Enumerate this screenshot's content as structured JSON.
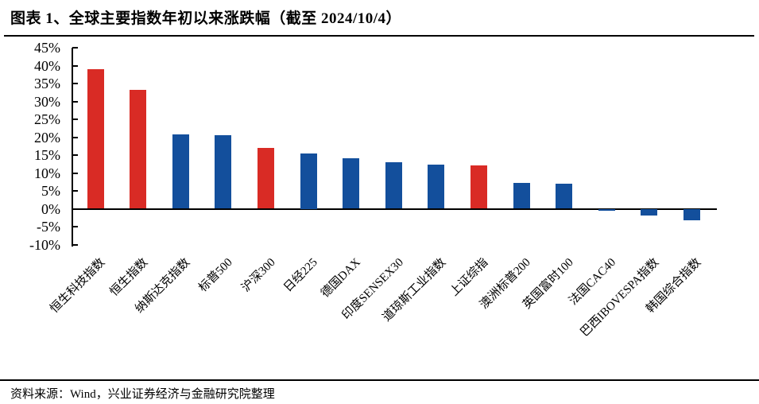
{
  "header": {
    "title": "图表 1、全球主要指数年初以来涨跌幅（截至 2024/10/4）"
  },
  "footer": {
    "source": "资料来源：Wind，兴业证券经济与金融研究院整理"
  },
  "chart_data": {
    "type": "bar",
    "title": "全球主要指数年初以来涨跌幅（截至 2024/10/4）",
    "categories": [
      "恒生科技指数",
      "恒生指数",
      "纳斯达克指数",
      "标普500",
      "沪深300",
      "日经225",
      "德国DAX",
      "印度SENSEX30",
      "道琼斯工业指数",
      "上证综指",
      "澳洲标普200",
      "英国富时100",
      "法国CAC40",
      "巴西IBOVESPA指数",
      "韩国综合指数"
    ],
    "values": [
      38.9,
      33.3,
      20.8,
      20.6,
      17.1,
      15.5,
      14.1,
      13.1,
      12.4,
      12.2,
      7.3,
      6.9,
      -0.5,
      -1.8,
      -3.2
    ],
    "unit": "%",
    "bar_color_keys": [
      "red",
      "red",
      "blue",
      "blue",
      "red",
      "blue",
      "blue",
      "blue",
      "blue",
      "red",
      "blue",
      "blue",
      "blue",
      "blue",
      "blue"
    ],
    "colors": {
      "red": "#d92b25",
      "blue": "#134f9c"
    },
    "ylim": [
      -10,
      45
    ],
    "yticks": [
      45,
      40,
      35,
      30,
      25,
      20,
      15,
      10,
      5,
      0,
      -5,
      -10
    ],
    "ytick_suffix": "%",
    "xlabel": "",
    "ylabel": "",
    "grid": false,
    "legend_position": "none",
    "bar_orientation": "vertical"
  }
}
